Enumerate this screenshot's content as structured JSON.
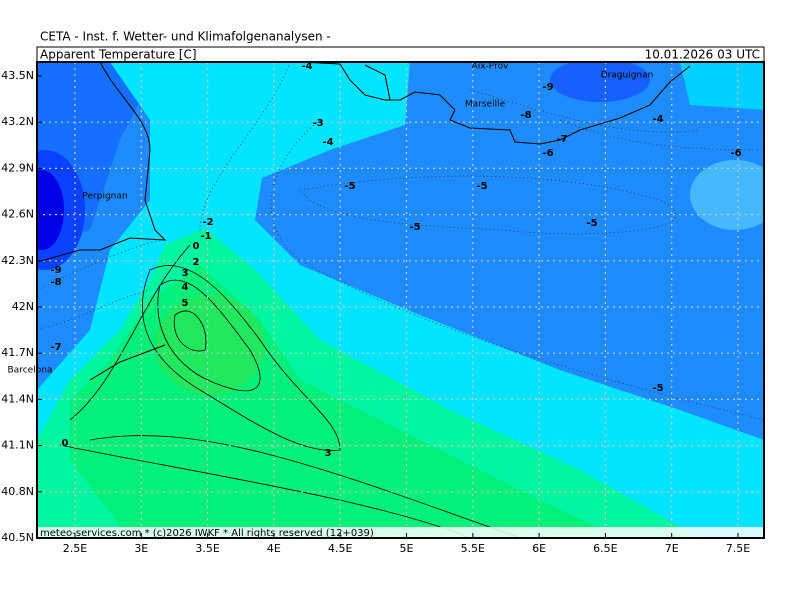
{
  "header": {
    "institute": "CETA - Inst. f. Wetter- und Klimafolgenanalysen -",
    "title": "Apparent Temperature [C]",
    "valid_time": "10.01.2026 03 UTC"
  },
  "footer": "meteo-services.com * (c)2026 IWKF * All rights reserved (12+039)",
  "axes": {
    "lat_labels": [
      "43.5N",
      "43.2N",
      "42.9N",
      "42.6N",
      "42.3N",
      "42N",
      "41.7N",
      "41.4N",
      "41.1N",
      "40.8N",
      "40.5N"
    ],
    "lon_labels": [
      "2.5E",
      "3E",
      "3.5E",
      "4E",
      "4.5E",
      "5E",
      "5.5E",
      "6E",
      "6.5E",
      "7E",
      "7.5E"
    ]
  },
  "cities": [
    "Aix-Prov",
    "Marseille",
    "Draguignan",
    "Perpignan",
    "Barcelona"
  ],
  "contour_labels": [
    "-4",
    "-3",
    "-4",
    "-5",
    "-5",
    "-5",
    "-5",
    "-2",
    "-1",
    "0",
    "2",
    "3",
    "4",
    "5",
    "-9",
    "-8",
    "-7",
    "0",
    "3",
    "-9",
    "-8",
    "-7",
    "-6",
    "-4",
    "-6",
    "-5"
  ]
}
